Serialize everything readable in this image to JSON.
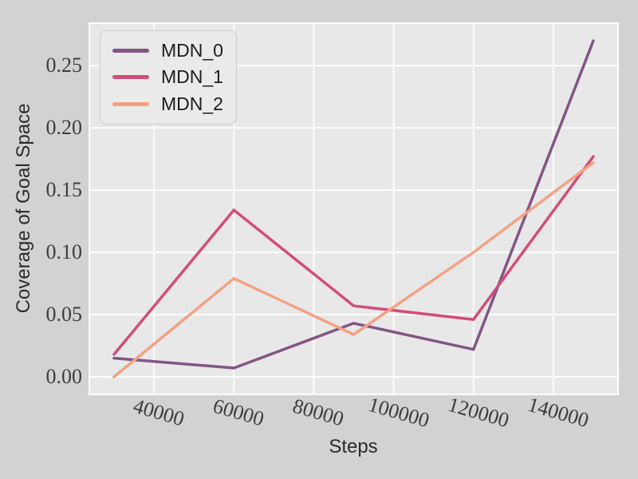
{
  "figure": {
    "background": "#d2d2d2",
    "axes_background": "#e8e8e9",
    "grid_color": "#ffffff",
    "tick_color": "#3d3d3d",
    "label_color": "#2b2b2b"
  },
  "chart_data": {
    "type": "line",
    "title": "",
    "xlabel": "Steps",
    "ylabel": "Coverage of Goal Space",
    "x": [
      30000,
      60000,
      90000,
      120000,
      150000
    ],
    "series": [
      {
        "name": "MDN_0",
        "color": "#835584",
        "values": [
          0.015,
          0.007,
          0.043,
          0.022,
          0.27
        ]
      },
      {
        "name": "MDN_1",
        "color": "#D14E79",
        "values": [
          0.018,
          0.134,
          0.057,
          0.046,
          0.177
        ]
      },
      {
        "name": "MDN_2",
        "color": "#F2A283",
        "values": [
          0.0,
          0.079,
          0.034,
          0.1,
          0.172
        ]
      }
    ],
    "xlim": [
      24000,
      156000
    ],
    "ylim": [
      -0.0135,
      0.2835
    ],
    "xticks": [
      40000,
      60000,
      80000,
      100000,
      120000,
      140000
    ],
    "yticks": [
      "0.00",
      "0.05",
      "0.10",
      "0.15",
      "0.20",
      "0.25"
    ],
    "grid": true,
    "legend_position": "upper left"
  }
}
